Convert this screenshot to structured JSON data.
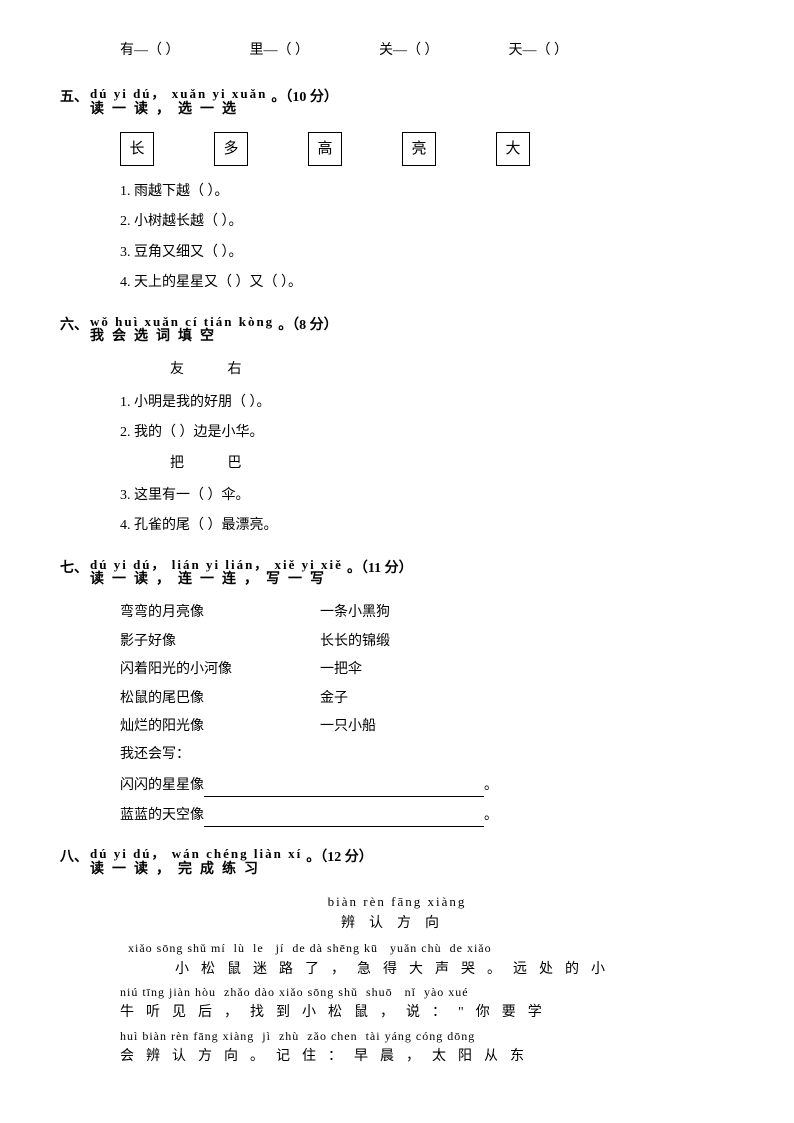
{
  "top_row": {
    "items": [
      "有—（   ）",
      "里—（   ）",
      "关—（   ）",
      "天—（   ）"
    ]
  },
  "sec5": {
    "num": "五、",
    "pinyin": "dú yi dú， xuǎn yi xuǎn",
    "hanzi": "读一读，选一选",
    "points": "。（10 分）",
    "boxes": [
      "长",
      "多",
      "高",
      "亮",
      "大"
    ],
    "items": [
      "1. 雨越下越（      ）。",
      "2. 小树越长越（      ）。",
      "3. 豆角又细又（      ）。",
      "4. 天上的星星又（      ）又（      ）。"
    ]
  },
  "sec6": {
    "num": "六、",
    "pinyin": "wǒ huì xuǎn cí tián kòng",
    "hanzi": "我会选词填空",
    "points": "。（8 分）",
    "group1_opts": [
      "友",
      "右"
    ],
    "group1_items": [
      "1. 小明是我的好朋（      ）。",
      "2. 我的（      ）边是小华。"
    ],
    "group2_opts": [
      "把",
      "巴"
    ],
    "group2_items": [
      "3. 这里有一（      ）伞。",
      "4. 孔雀的尾（      ）最漂亮。"
    ]
  },
  "sec7": {
    "num": "七、",
    "pinyin": "dú yi dú， lián yi lián， xiě yi xiě",
    "hanzi": "读一读，连一连，写一写",
    "points": "。（11 分）",
    "matches": [
      {
        "left": "弯弯的月亮像",
        "right": "一条小黑狗"
      },
      {
        "left": "影子好像",
        "right": "长长的锦缎"
      },
      {
        "left": "闪着阳光的小河像",
        "right": "一把伞"
      },
      {
        "left": "松鼠的尾巴像",
        "right": "金子"
      },
      {
        "left": "灿烂的阳光像",
        "right": "一只小船"
      }
    ],
    "write_prompt": "我还会写：",
    "write1": "闪闪的星星像",
    "write2": "蓝蓝的天空像",
    "period": "。"
  },
  "sec8": {
    "num": "八、",
    "pinyin": "dú yi dú， wán chéng liàn xí",
    "hanzi": "读一读，完成练习",
    "points": "。（12 分）",
    "title_pinyin": "biàn rèn fāng xiàng",
    "title_hanzi": "辨认方向",
    "lines": [
      {
        "pinyin": "  xiǎo sōng shǔ mí  lù  le   jí  de dà shēng kū   yuǎn chù  de xiǎo",
        "hanzi": "  小松鼠迷路了，急得大声哭。远处的小"
      },
      {
        "pinyin": "niú tīng jiàn hòu  zhǎo dào xiǎo sōng shǔ  shuō   nǐ  yào xué",
        "hanzi": "牛听见后，找到小松鼠，说：\"你要学"
      },
      {
        "pinyin": "huì biàn rèn fāng xiàng  jì  zhù  zǎo chen  tài yáng cóng dōng",
        "hanzi": "会辨认方向。记住：早晨，太阳从东"
      }
    ]
  }
}
